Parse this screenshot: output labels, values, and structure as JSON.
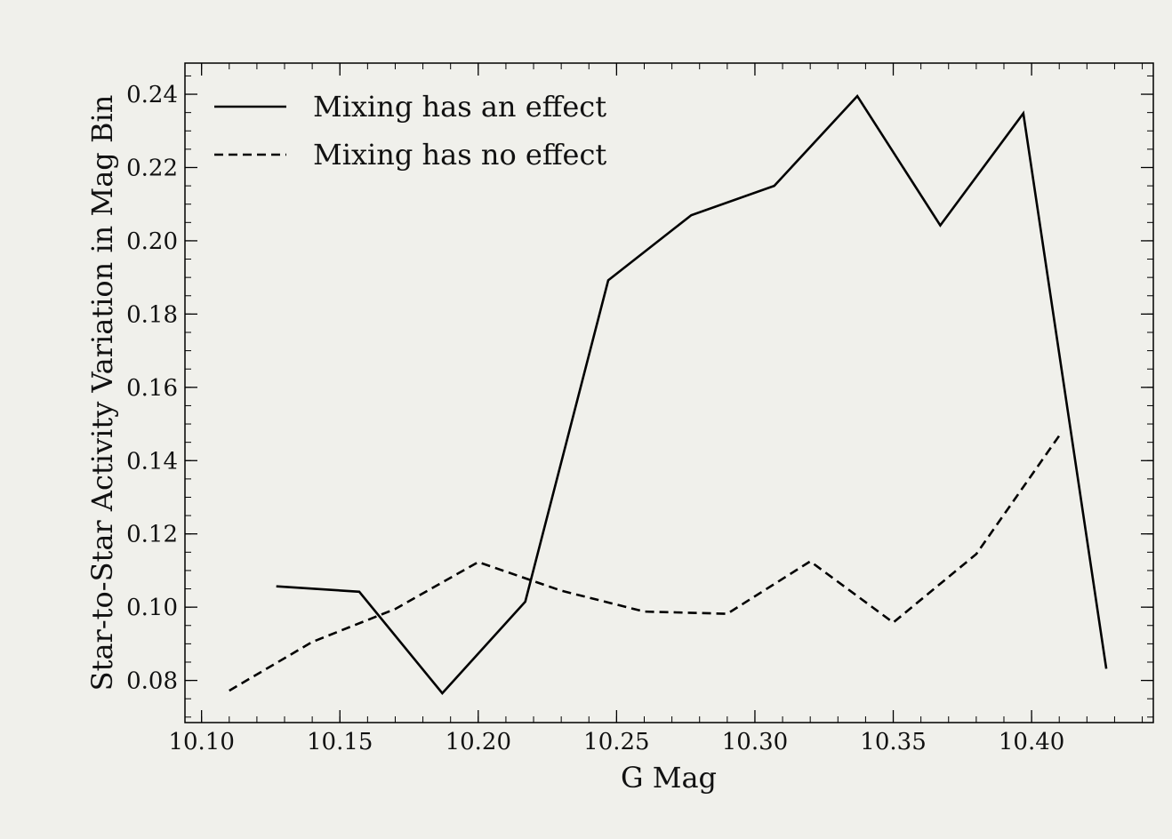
{
  "chart_data": {
    "type": "line",
    "title": "",
    "xlabel": "G Mag",
    "ylabel": "Star-to-Star Activity Variation in Mag Bin",
    "xlim": [
      10.094,
      10.444
    ],
    "ylim": [
      0.0685,
      0.2485
    ],
    "xticks": [
      10.1,
      10.15,
      10.2,
      10.25,
      10.3,
      10.35,
      10.4
    ],
    "xtick_labels": [
      "10.10",
      "10.15",
      "10.20",
      "10.25",
      "10.30",
      "10.35",
      "10.40"
    ],
    "yticks": [
      0.08,
      0.1,
      0.12,
      0.14,
      0.16,
      0.18,
      0.2,
      0.22,
      0.24
    ],
    "ytick_labels": [
      "0.08",
      "0.10",
      "0.12",
      "0.14",
      "0.16",
      "0.18",
      "0.20",
      "0.22",
      "0.24"
    ],
    "legend_position": "top-left",
    "grid": false,
    "series": [
      {
        "name": "Mixing has an effect",
        "style": "solid",
        "color": "#000000",
        "x": [
          10.127,
          10.157,
          10.187,
          10.217,
          10.247,
          10.277,
          10.307,
          10.337,
          10.367,
          10.397,
          10.427
        ],
        "y": [
          0.1057,
          0.1042,
          0.0765,
          0.1015,
          0.1892,
          0.207,
          0.215,
          0.2395,
          0.2042,
          0.2348,
          0.0832
        ]
      },
      {
        "name": "Mixing has no effect",
        "style": "dashed",
        "color": "#000000",
        "x": [
          10.11,
          10.14,
          10.17,
          10.2,
          10.23,
          10.26,
          10.29,
          10.32,
          10.35,
          10.38,
          10.41
        ],
        "y": [
          0.0772,
          0.0905,
          0.0995,
          0.1123,
          0.1045,
          0.0988,
          0.0982,
          0.1125,
          0.0958,
          0.1145,
          0.1468
        ]
      }
    ]
  }
}
